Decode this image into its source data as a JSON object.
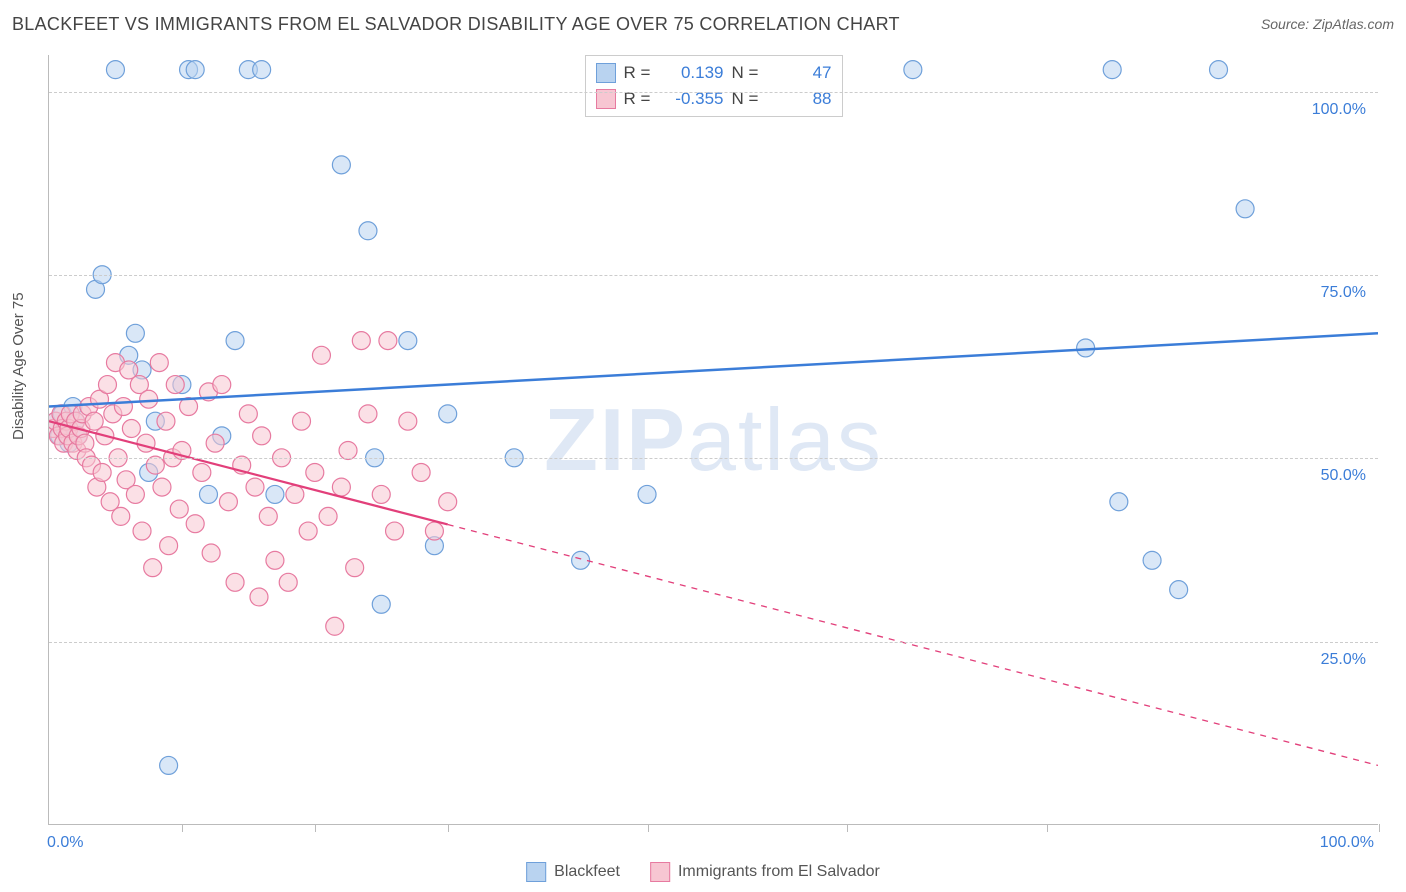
{
  "header": {
    "title": "BLACKFEET VS IMMIGRANTS FROM EL SALVADOR DISABILITY AGE OVER 75 CORRELATION CHART",
    "source_prefix": "Source: ",
    "source_name": "ZipAtlas.com"
  },
  "watermark": {
    "part1": "ZIP",
    "part2": "atlas"
  },
  "chart": {
    "type": "scatter",
    "ylabel": "Disability Age Over 75",
    "xlim": [
      0,
      100
    ],
    "ylim": [
      0,
      105
    ],
    "x_ticks": [
      10,
      20,
      30,
      45,
      60,
      75,
      100
    ],
    "x_tick_labels": {
      "left": "0.0%",
      "right": "100.0%"
    },
    "y_gridlines": [
      25,
      50,
      75,
      100
    ],
    "y_tick_labels": [
      "25.0%",
      "50.0%",
      "75.0%",
      "100.0%"
    ],
    "background_color": "#ffffff",
    "grid_color": "#cccccc",
    "axis_color": "#bbbbbb",
    "tick_label_color": "#3b7dd8",
    "marker_radius": 9,
    "marker_stroke_width": 1.2,
    "series": [
      {
        "name": "Blackfeet",
        "fill": "#b9d3f0",
        "stroke": "#6fa0da",
        "fill_opacity": 0.55,
        "trend": {
          "x1": 0,
          "y1": 57,
          "x2": 100,
          "y2": 67,
          "solid_until_x": 100,
          "color": "#3b7dd8",
          "width": 2.5
        },
        "points": [
          [
            0.5,
            55
          ],
          [
            0.8,
            53
          ],
          [
            1.0,
            56
          ],
          [
            1.2,
            54
          ],
          [
            1.5,
            52
          ],
          [
            1.8,
            57
          ],
          [
            2.0,
            55
          ],
          [
            2.2,
            53
          ],
          [
            3.5,
            73
          ],
          [
            4.0,
            75
          ],
          [
            5.0,
            103
          ],
          [
            6.0,
            64
          ],
          [
            6.5,
            67
          ],
          [
            7.0,
            62
          ],
          [
            7.5,
            48
          ],
          [
            8.0,
            55
          ],
          [
            9.0,
            8
          ],
          [
            10.0,
            60
          ],
          [
            10.5,
            103
          ],
          [
            11.0,
            103
          ],
          [
            12.0,
            45
          ],
          [
            13.0,
            53
          ],
          [
            14.0,
            66
          ],
          [
            15.0,
            103
          ],
          [
            16.0,
            103
          ],
          [
            17.0,
            45
          ],
          [
            22.0,
            90
          ],
          [
            24.0,
            81
          ],
          [
            24.5,
            50
          ],
          [
            25.0,
            30
          ],
          [
            27.0,
            66
          ],
          [
            29.0,
            38
          ],
          [
            30.0,
            56
          ],
          [
            35.0,
            50
          ],
          [
            40.0,
            36
          ],
          [
            45.0,
            45
          ],
          [
            65.0,
            103
          ],
          [
            80.0,
            103
          ],
          [
            78.0,
            65
          ],
          [
            80.5,
            44
          ],
          [
            83.0,
            36
          ],
          [
            85.0,
            32
          ],
          [
            88.0,
            103
          ],
          [
            90.0,
            84
          ]
        ]
      },
      {
        "name": "Immigrants from El Salvador",
        "fill": "#f7c6d2",
        "stroke": "#e77aa0",
        "fill_opacity": 0.55,
        "trend": {
          "x1": 0,
          "y1": 55,
          "x2": 100,
          "y2": 8,
          "solid_until_x": 30,
          "color": "#e23f7a",
          "width": 2.2
        },
        "points": [
          [
            0.3,
            54
          ],
          [
            0.5,
            55
          ],
          [
            0.7,
            53
          ],
          [
            0.9,
            56
          ],
          [
            1.0,
            54
          ],
          [
            1.1,
            52
          ],
          [
            1.3,
            55
          ],
          [
            1.4,
            53
          ],
          [
            1.5,
            54
          ],
          [
            1.6,
            56
          ],
          [
            1.8,
            52
          ],
          [
            2.0,
            55
          ],
          [
            2.1,
            51
          ],
          [
            2.2,
            53
          ],
          [
            2.4,
            54
          ],
          [
            2.5,
            56
          ],
          [
            2.7,
            52
          ],
          [
            2.8,
            50
          ],
          [
            3.0,
            57
          ],
          [
            3.2,
            49
          ],
          [
            3.4,
            55
          ],
          [
            3.6,
            46
          ],
          [
            3.8,
            58
          ],
          [
            4.0,
            48
          ],
          [
            4.2,
            53
          ],
          [
            4.4,
            60
          ],
          [
            4.6,
            44
          ],
          [
            4.8,
            56
          ],
          [
            5.0,
            63
          ],
          [
            5.2,
            50
          ],
          [
            5.4,
            42
          ],
          [
            5.6,
            57
          ],
          [
            5.8,
            47
          ],
          [
            6.0,
            62
          ],
          [
            6.2,
            54
          ],
          [
            6.5,
            45
          ],
          [
            6.8,
            60
          ],
          [
            7.0,
            40
          ],
          [
            7.3,
            52
          ],
          [
            7.5,
            58
          ],
          [
            7.8,
            35
          ],
          [
            8.0,
            49
          ],
          [
            8.3,
            63
          ],
          [
            8.5,
            46
          ],
          [
            8.8,
            55
          ],
          [
            9.0,
            38
          ],
          [
            9.3,
            50
          ],
          [
            9.5,
            60
          ],
          [
            9.8,
            43
          ],
          [
            10.0,
            51
          ],
          [
            10.5,
            57
          ],
          [
            11.0,
            41
          ],
          [
            11.5,
            48
          ],
          [
            12.0,
            59
          ],
          [
            12.2,
            37
          ],
          [
            12.5,
            52
          ],
          [
            13.0,
            60
          ],
          [
            13.5,
            44
          ],
          [
            14.0,
            33
          ],
          [
            14.5,
            49
          ],
          [
            15.0,
            56
          ],
          [
            15.5,
            46
          ],
          [
            15.8,
            31
          ],
          [
            16.0,
            53
          ],
          [
            16.5,
            42
          ],
          [
            17.0,
            36
          ],
          [
            17.5,
            50
          ],
          [
            18.0,
            33
          ],
          [
            18.5,
            45
          ],
          [
            19.0,
            55
          ],
          [
            19.5,
            40
          ],
          [
            20.0,
            48
          ],
          [
            20.5,
            64
          ],
          [
            21.0,
            42
          ],
          [
            21.5,
            27
          ],
          [
            22.0,
            46
          ],
          [
            22.5,
            51
          ],
          [
            23.0,
            35
          ],
          [
            23.5,
            66
          ],
          [
            24.0,
            56
          ],
          [
            25.0,
            45
          ],
          [
            25.5,
            66
          ],
          [
            26.0,
            40
          ],
          [
            27.0,
            55
          ],
          [
            28.0,
            48
          ],
          [
            29.0,
            40
          ],
          [
            30.0,
            44
          ]
        ]
      }
    ]
  },
  "legend_top": {
    "rows": [
      {
        "swatch_fill": "#b9d3f0",
        "swatch_stroke": "#6fa0da",
        "r_label": "R =",
        "r_value": "0.139",
        "n_label": "N =",
        "n_value": "47"
      },
      {
        "swatch_fill": "#f7c6d2",
        "swatch_stroke": "#e77aa0",
        "r_label": "R =",
        "r_value": "-0.355",
        "n_label": "N =",
        "n_value": "88"
      }
    ]
  },
  "legend_bottom": {
    "items": [
      {
        "swatch_fill": "#b9d3f0",
        "swatch_stroke": "#6fa0da",
        "label": "Blackfeet"
      },
      {
        "swatch_fill": "#f7c6d2",
        "swatch_stroke": "#e77aa0",
        "label": "Immigrants from El Salvador"
      }
    ]
  }
}
